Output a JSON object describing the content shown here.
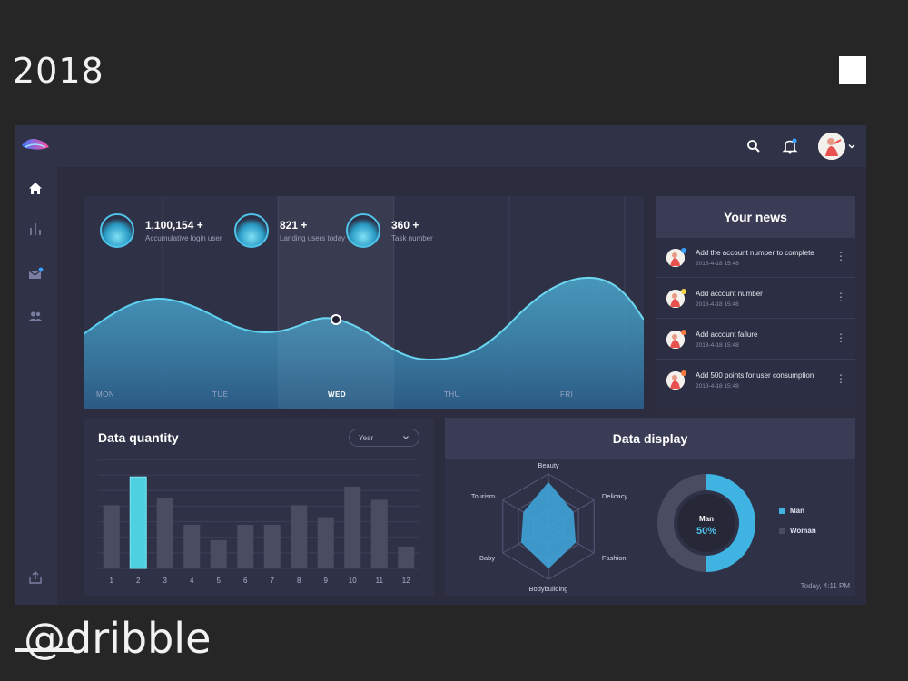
{
  "frame": {
    "year": "2018",
    "watermark": "@dribble"
  },
  "header": {
    "icons": [
      "search-icon",
      "bell-icon",
      "avatar"
    ]
  },
  "sidebar": {
    "items": [
      {
        "icon": "home-icon",
        "active": true
      },
      {
        "icon": "bar-chart-icon",
        "active": false
      },
      {
        "icon": "mail-icon",
        "active": false,
        "badge": true
      },
      {
        "icon": "users-icon",
        "active": false
      }
    ],
    "bottom_icon": "export-icon"
  },
  "stats": [
    {
      "value": "1,100,154 +",
      "label": "Accumulative login user"
    },
    {
      "value": "821 +",
      "label": "Landing users today"
    },
    {
      "value": "360 +",
      "label": "Task number"
    }
  ],
  "wave": {
    "days": [
      "MON",
      "TUE",
      "WED",
      "THU",
      "FRI"
    ],
    "active_day": "WED"
  },
  "news": {
    "title": "Your news",
    "items": [
      {
        "title": "Add the account number to complete",
        "time": "2018-4-18  15:48",
        "dot": "#3aa0ff"
      },
      {
        "title": "Add account number",
        "time": "2018-4-18  15:48",
        "dot": "#f5d547"
      },
      {
        "title": "Add account failure",
        "time": "2018-4-18  15:48",
        "dot": "#ff7a3d"
      },
      {
        "title": "Add 500 points for user consumption",
        "time": "2018-4-18  15:48",
        "dot": "#ff7a3d"
      }
    ]
  },
  "quantity": {
    "title": "Data quantity",
    "select_value": "Year"
  },
  "display": {
    "title": "Data display",
    "today": "Today, 4:11 PM"
  },
  "colors": {
    "accent": "#4ec2ea",
    "panel": "#2f3147",
    "bar": "#4a4c62",
    "bar_active": "#4fd0e0"
  },
  "chart_data": [
    {
      "type": "bar",
      "categories": [
        "1",
        "2",
        "3",
        "4",
        "5",
        "6",
        "7",
        "8",
        "9",
        "10",
        "11",
        "12"
      ],
      "values": [
        58,
        84,
        65,
        40,
        26,
        40,
        40,
        58,
        47,
        75,
        63,
        20
      ],
      "highlight_index": 1,
      "ylim": [
        0,
        100
      ],
      "grid": true
    },
    {
      "type": "radar",
      "axes": [
        "Beauty",
        "Delicacy",
        "Fashion",
        "Bodybuilding",
        "Baby",
        "Tourism"
      ],
      "values": [
        0.85,
        0.55,
        0.6,
        0.8,
        0.6,
        0.55
      ],
      "max": 1
    },
    {
      "type": "pie",
      "center_label": "Man",
      "center_value": "50%",
      "slices": [
        {
          "name": "Man",
          "value": 50,
          "color": "#3fb4e3"
        },
        {
          "name": "Woman",
          "value": 50,
          "color": "#4a4c62"
        }
      ],
      "legend": "right"
    }
  ]
}
